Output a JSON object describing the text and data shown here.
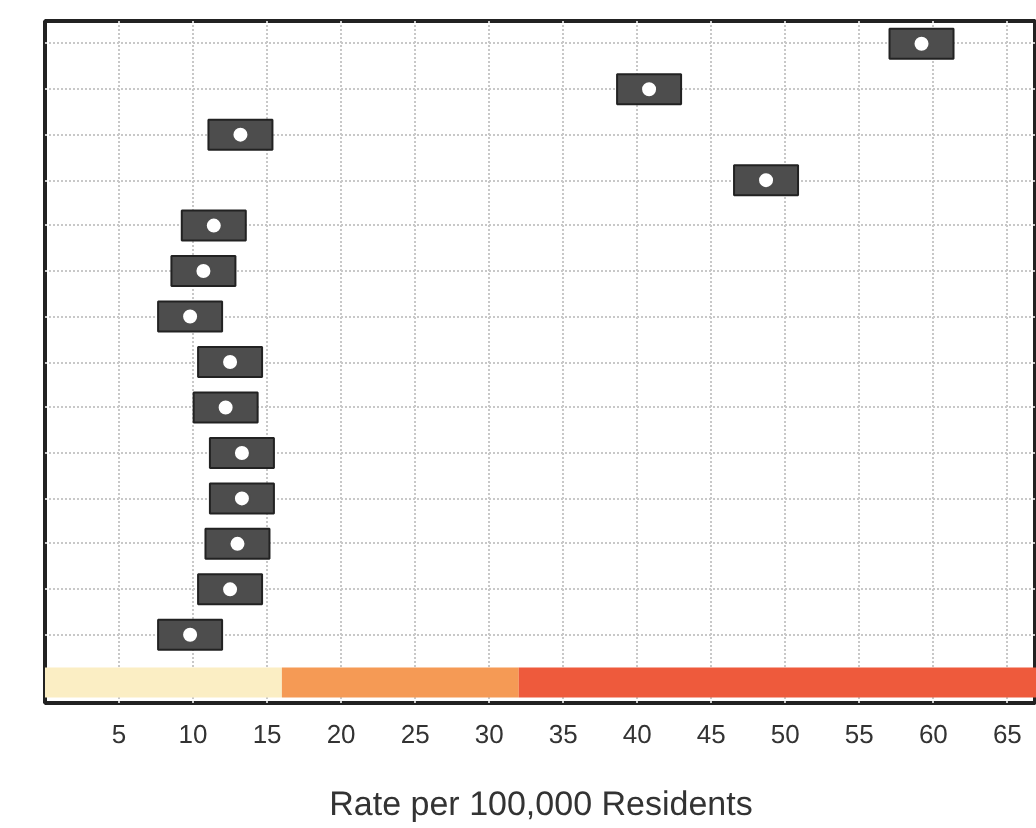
{
  "chart_data": {
    "type": "scatter",
    "orientation": "horizontal",
    "xlabel": "Rate per 100,000 Residents",
    "categories": [
      null,
      null,
      null,
      null,
      null,
      null,
      null,
      null,
      null,
      null,
      null,
      null,
      null,
      null,
      null
    ],
    "values": [
      59.2,
      40.8,
      13.2,
      48.7,
      11.4,
      10.7,
      9.8,
      12.5,
      12.2,
      13.3,
      13.3,
      13.0,
      12.5,
      9.8,
      null
    ],
    "color": "#4d4d4d",
    "marker": "circle",
    "xlim": [
      0,
      67
    ],
    "xticks": [
      5,
      10,
      15,
      20,
      25,
      30,
      35,
      40,
      45,
      50,
      55,
      60,
      65
    ],
    "grid": true,
    "tick_labels": "x",
    "bands": [
      {
        "axis": "x",
        "from": 0,
        "to": 16,
        "color": "#fbeec4"
      },
      {
        "axis": "x",
        "from": 16,
        "to": 32,
        "color": "#f59a55"
      },
      {
        "axis": "x",
        "from": 32,
        "to": 67,
        "color": "#ee5a3c"
      }
    ]
  }
}
